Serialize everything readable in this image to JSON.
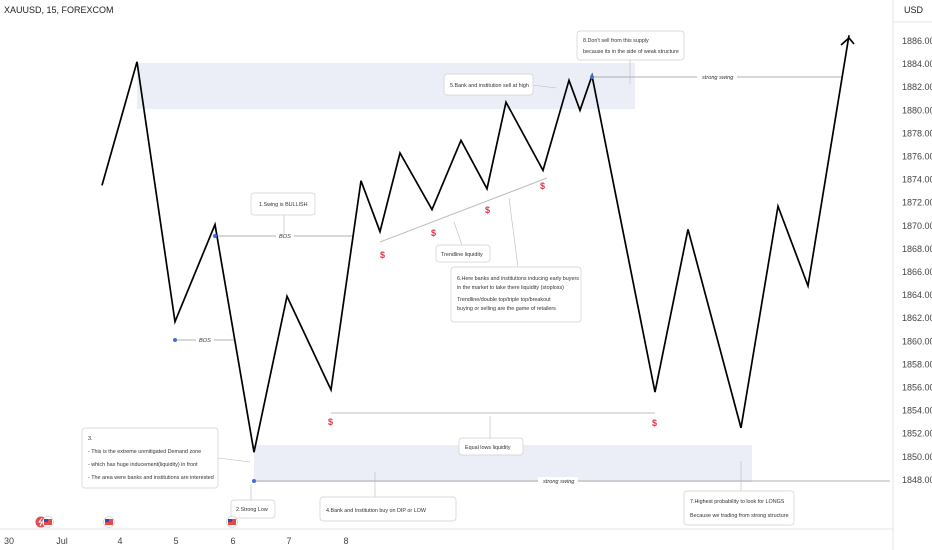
{
  "header": {
    "symbol": "XAUUSD, 15, FOREXCOM",
    "currency": "USD"
  },
  "chart_data": {
    "type": "line",
    "title": "XAUUSD, 15, FOREXCOM",
    "yunit": "USD",
    "ylim": [
      1846,
      1888
    ],
    "yticks": [
      1886,
      1884,
      1882,
      1880,
      1878,
      1876,
      1874,
      1872,
      1870,
      1868,
      1866,
      1864,
      1862,
      1860,
      1858,
      1856,
      1854,
      1852,
      1850,
      1848
    ],
    "xticks": [
      "30",
      "Jul",
      "4",
      "5",
      "6",
      "7",
      "8"
    ],
    "series": [
      {
        "values": [
          1873.5,
          1884.2,
          1861.7,
          1870.1,
          1850.4,
          1863.9,
          1855.8,
          1873.9,
          1869.5,
          1876.3,
          1871.4,
          1877.4,
          1873.2,
          1880.7,
          1874.8,
          1882.6,
          1880.0,
          1883.0,
          1855.6,
          1869.7,
          1852.5,
          1871.7,
          1864.8,
          1886.5
        ]
      }
    ],
    "annotations": {
      "bos_1": "BOS",
      "bos_2": "BOS",
      "strong_swing_top": "strong swing",
      "strong_swing_bottom": "strong swing",
      "liquidity_marker": "$",
      "c1": "1.Swing is BULLISH",
      "c2": "2.Strong Low",
      "c3": [
        "3.",
        "- This is the extreme unmitigated Demand zone",
        "- which has huge inducement(liquidity) in front",
        "- The area were banks and institutions are interested"
      ],
      "c4": "4.Bank and  Institution buy on DIP or LOW",
      "c5": "5.Bank and institution sell at high",
      "c6": [
        "6.Here banks and institutions inducing early buyers",
        "  in the market to take there liquidity (stoploss)",
        "Trendline/double top/triple top/breakout",
        "buying or selling are the game of retailers"
      ],
      "c7": [
        "7.Highest probability to look for LONGS",
        "Because we trading from strong structure"
      ],
      "c8": [
        "8.Don't sell from this supply",
        "because its in the side of weak structure"
      ],
      "equal_lows": "Equal lows liquidity",
      "trendline": "Trendline liquidity"
    },
    "colors": {
      "price": "#000000",
      "zone": "#eceef7",
      "dollar": "#e03545",
      "swing_point": "#3d6fd6",
      "trendline": "#bbbbbb"
    },
    "grid": false
  }
}
